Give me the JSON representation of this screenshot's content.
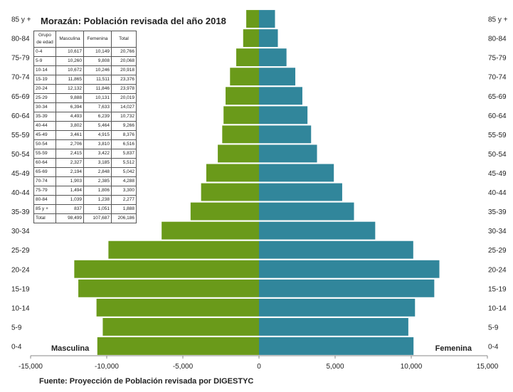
{
  "header": {
    "title": "Morazán: Población revisada del año 2018"
  },
  "footer": {
    "source": "Fuente: Proyección de Población revisada por DIGESTYC"
  },
  "legend": {
    "left_label": "Masculina",
    "right_label": "Femenina"
  },
  "colors": {
    "male": "#6a9a1a",
    "female": "#31869b"
  },
  "table": {
    "headers": [
      "Grupo de edad",
      "Masculina",
      "Femenina",
      "Total"
    ],
    "rows": [
      [
        "0-4",
        "10,617",
        "10,149",
        "20,766"
      ],
      [
        "5-9",
        "10,260",
        "9,808",
        "20,068"
      ],
      [
        "10-14",
        "10,672",
        "10,246",
        "20,918"
      ],
      [
        "15-19",
        "11,865",
        "11,511",
        "23,376"
      ],
      [
        "20-24",
        "12,132",
        "11,846",
        "23,978"
      ],
      [
        "25-29",
        "9,888",
        "10,131",
        "20,019"
      ],
      [
        "30-34",
        "6,394",
        "7,633",
        "14,027"
      ],
      [
        "35-39",
        "4,493",
        "6,239",
        "10,732"
      ],
      [
        "40-44",
        "3,802",
        "5,464",
        "9,266"
      ],
      [
        "45-49",
        "3,461",
        "4,915",
        "8,376"
      ],
      [
        "50-54",
        "2,706",
        "3,810",
        "6,516"
      ],
      [
        "55-59",
        "2,415",
        "3,422",
        "5,837"
      ],
      [
        "60-64",
        "2,327",
        "3,185",
        "5,512"
      ],
      [
        "65-69",
        "2,194",
        "2,848",
        "5,042"
      ],
      [
        "70-74",
        "1,903",
        "2,385",
        "4,288"
      ],
      [
        "75-79",
        "1,494",
        "1,806",
        "3,300"
      ],
      [
        "80-84",
        "1,039",
        "1,238",
        "2,277"
      ],
      [
        "85 y +",
        "837",
        "1,051",
        "1,888"
      ],
      [
        "Total",
        "98,499",
        "107,687",
        "206,186"
      ]
    ]
  },
  "chart_data": {
    "type": "bar",
    "orientation": "horizontal-population-pyramid",
    "title": "Morazán: Población revisada del año 2018",
    "categories": [
      "0-4",
      "5-9",
      "10-14",
      "15-19",
      "20-24",
      "25-29",
      "30-34",
      "35-39",
      "40-44",
      "45-49",
      "50-54",
      "55-59",
      "60-64",
      "65-69",
      "70-74",
      "75-79",
      "80-84",
      "85 y +"
    ],
    "series": [
      {
        "name": "Masculina",
        "values": [
          -10617,
          -10260,
          -10672,
          -11865,
          -12132,
          -9888,
          -6394,
          -4493,
          -3802,
          -3461,
          -2706,
          -2415,
          -2327,
          -2194,
          -1903,
          -1494,
          -1039,
          -837
        ]
      },
      {
        "name": "Femenina",
        "values": [
          10149,
          9808,
          10246,
          11511,
          11846,
          10131,
          7633,
          6239,
          5464,
          4915,
          3810,
          3422,
          3185,
          2848,
          2385,
          1806,
          1238,
          1051
        ]
      }
    ],
    "xlim": [
      -15000,
      15000
    ],
    "xticks": [
      -15000,
      -10000,
      -5000,
      0,
      5000,
      10000,
      15000
    ],
    "xtick_labels": [
      "-15,000",
      "-10,000",
      "-5,000",
      "0",
      "5,000",
      "10,000",
      "15,000"
    ],
    "grid": false
  }
}
